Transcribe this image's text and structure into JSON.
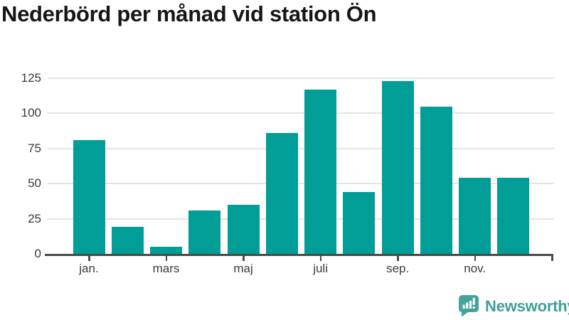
{
  "chart_data": {
    "type": "bar",
    "title": "Nederbörd per månad vid station Ön",
    "categories": [
      "jan.",
      "",
      "mars",
      "",
      "maj",
      "",
      "juli",
      "",
      "sep.",
      "",
      "nov.",
      ""
    ],
    "values": [
      81,
      19,
      5,
      31,
      35,
      86,
      117,
      44,
      123,
      105,
      54,
      54
    ],
    "yticks": [
      0,
      25,
      50,
      75,
      100,
      125
    ],
    "ylim": [
      0,
      133
    ],
    "xlabel": "",
    "ylabel": "",
    "grid": "horizontal",
    "legend": "none"
  },
  "colors": {
    "bar": "#009e96",
    "axis": "#4a4a4a",
    "grid": "#e4e4e4",
    "title": "#161616",
    "tick_label": "#3a3a3a",
    "brand": "#3fa098"
  },
  "footer": {
    "brand": "Newsworthy",
    "logo_icon": "newsworthy-bubble-chart-icon"
  }
}
